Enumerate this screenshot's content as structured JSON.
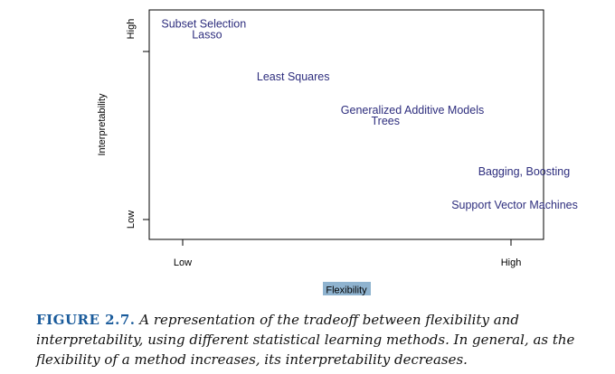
{
  "chart_data": {
    "type": "scatter",
    "xlabel": "Flexibility",
    "ylabel": "Interpretability",
    "x_ticks": [
      "Low",
      "High"
    ],
    "y_ticks": [
      "Low",
      "High"
    ],
    "grid": false,
    "legend": "none",
    "points": [
      {
        "label": "Subset Selection",
        "x": 0.02,
        "y": 0.98
      },
      {
        "label": "Lasso",
        "x": 0.1,
        "y": 0.93
      },
      {
        "label": "Least Squares",
        "x": 0.27,
        "y": 0.73
      },
      {
        "label": "Generalized Additive Models",
        "x": 0.49,
        "y": 0.57
      },
      {
        "label": "Trees",
        "x": 0.57,
        "y": 0.52
      },
      {
        "label": "Bagging, Boosting",
        "x": 0.85,
        "y": 0.28
      },
      {
        "label": "Support Vector Machines",
        "x": 0.78,
        "y": 0.12
      }
    ],
    "text_color": "#2e2e7e",
    "xlabel_highlight": "#8fb3cf"
  },
  "caption": {
    "figure_label": "FIGURE 2.7.",
    "text": "A representation of the tradeoff between flexibility and interpretability, using different statistical learning methods. In general, as the flexibility of a method increases, its interpretability decreases."
  }
}
